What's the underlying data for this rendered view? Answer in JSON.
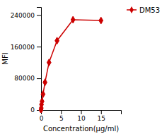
{
  "chart_data": {
    "type": "line",
    "x": [
      0.0,
      0.06,
      0.12,
      0.25,
      0.5,
      1.0,
      2.0,
      4.0,
      8.0,
      15.0
    ],
    "series": [
      {
        "name": "DM53",
        "color": "#CC0000",
        "marker": "diamond",
        "values": [
          0,
          5000,
          14000,
          22000,
          40000,
          70000,
          120000,
          175000,
          228000,
          226000
        ]
      }
    ],
    "xlabel": "Concentration(μg/ml)",
    "ylabel": "MFI",
    "xlim": [
      0,
      20
    ],
    "ylim": [
      0,
      260000
    ],
    "xticks": [
      0,
      5,
      10,
      15
    ],
    "yticks": [
      0,
      80000,
      160000,
      240000
    ],
    "grid": false,
    "legend": "right"
  }
}
